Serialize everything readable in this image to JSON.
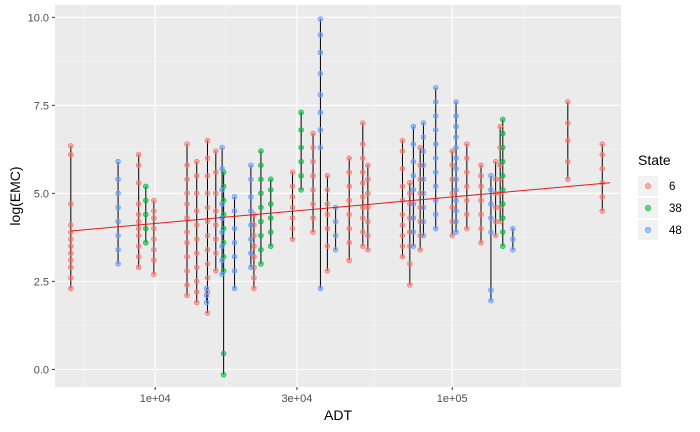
{
  "chart_data": {
    "type": "scatter",
    "xlabel": "ADT",
    "ylabel": "log(EMC)",
    "x_scale": "log10",
    "xlim": [
      4600,
      370000
    ],
    "ylim": [
      -0.5,
      10.35
    ],
    "x_ticks": [
      {
        "value": 10000,
        "label": "1e+04"
      },
      {
        "value": 30000,
        "label": "3e+04"
      },
      {
        "value": 100000,
        "label": "1e+05"
      }
    ],
    "y_ticks": [
      {
        "value": 0,
        "label": "0.0"
      },
      {
        "value": 2.5,
        "label": "2.5"
      },
      {
        "value": 5,
        "label": "5.0"
      },
      {
        "value": 7.5,
        "label": "7.5"
      },
      {
        "value": 10,
        "label": "10.0"
      }
    ],
    "grid": true,
    "legend": {
      "title": "State",
      "position": "right",
      "entries": [
        {
          "label": "6",
          "color": "#F8766D"
        },
        {
          "label": "38",
          "color": "#00BA38"
        },
        {
          "label": "48",
          "color": "#619CFF"
        }
      ]
    },
    "trend_line": {
      "x": [
        5200,
        340000
      ],
      "y": [
        3.93,
        5.3
      ],
      "color": "#E41A1C"
    },
    "series": [
      {
        "name": "6",
        "color": "#F8766D",
        "groups": [
          {
            "x": 5200,
            "y": [
              2.3,
              2.6,
              2.9,
              3.1,
              3.3,
              3.5,
              3.7,
              3.9,
              4.1,
              4.7,
              6.1,
              6.35
            ]
          },
          {
            "x": 8800,
            "y": [
              2.9,
              3.2,
              3.5,
              3.8,
              4.0,
              4.2,
              4.4,
              4.7,
              5.3,
              5.8,
              6.1
            ]
          },
          {
            "x": 9900,
            "y": [
              2.7,
              3.1,
              3.4,
              3.7,
              4.0,
              4.3,
              4.5,
              4.8
            ]
          },
          {
            "x": 12800,
            "y": [
              2.1,
              2.4,
              2.8,
              3.2,
              3.6,
              3.9,
              4.3,
              4.7,
              5.0,
              5.4,
              5.8,
              6.4
            ]
          },
          {
            "x": 13800,
            "y": [
              1.9,
              2.2,
              2.5,
              2.9,
              3.3,
              3.7,
              4.1,
              4.5,
              5.0,
              5.5,
              5.9
            ]
          },
          {
            "x": 15000,
            "y": [
              1.6,
              2.2,
              2.6,
              3.0,
              3.4,
              3.8,
              4.2,
              4.6,
              5.0,
              5.5,
              6.0,
              6.5
            ]
          },
          {
            "x": 16000,
            "y": [
              2.8,
              3.3,
              3.7,
              4.1,
              4.5,
              5.0,
              5.6,
              6.2
            ]
          },
          {
            "x": 21500,
            "y": [
              2.3,
              2.6,
              2.9,
              3.2,
              3.5,
              3.8,
              4.1,
              4.4
            ]
          },
          {
            "x": 29000,
            "y": [
              3.7,
              4.0,
              4.3,
              4.6,
              4.9,
              5.2,
              5.6
            ]
          },
          {
            "x": 34000,
            "y": [
              3.9,
              4.3,
              4.7,
              5.1,
              5.5,
              5.9,
              6.3,
              6.7
            ]
          },
          {
            "x": 38000,
            "y": [
              2.8,
              3.5,
              4.0,
              4.4,
              4.7,
              5.1,
              5.5
            ]
          },
          {
            "x": 45000,
            "y": [
              3.1,
              3.6,
              4.0,
              4.4,
              4.8,
              5.2,
              5.6,
              6.0
            ]
          },
          {
            "x": 50000,
            "y": [
              3.5,
              3.9,
              4.3,
              4.6,
              4.9,
              5.3,
              5.6,
              6.0,
              6.4,
              7.0
            ]
          },
          {
            "x": 52000,
            "y": [
              3.4,
              3.8,
              4.2,
              4.6,
              5.0,
              5.4,
              5.8
            ]
          },
          {
            "x": 68000,
            "y": [
              3.2,
              3.5,
              3.8,
              4.1,
              4.4,
              4.8,
              5.2,
              5.7,
              6.2,
              6.5
            ]
          },
          {
            "x": 72000,
            "y": [
              2.4,
              3.0,
              3.5,
              3.9,
              4.3,
              4.7,
              5.0,
              5.3
            ]
          },
          {
            "x": 78000,
            "y": [
              3.4,
              3.8,
              4.2,
              4.6,
              5.0,
              5.4,
              5.8,
              6.3
            ]
          },
          {
            "x": 100000,
            "y": [
              3.8,
              4.2,
              4.6,
              5.0,
              5.4,
              5.8,
              6.2
            ]
          },
          {
            "x": 112000,
            "y": [
              4.0,
              4.4,
              4.8,
              5.2,
              5.6,
              6.0,
              6.4
            ]
          },
          {
            "x": 125000,
            "y": [
              3.6,
              4.0,
              4.4,
              4.8,
              5.2,
              5.5,
              5.8
            ]
          },
          {
            "x": 140000,
            "y": [
              3.8,
              4.2,
              4.6,
              5.0,
              5.4,
              5.9
            ]
          },
          {
            "x": 145000,
            "y": [
              4.2,
              4.6,
              5.0,
              5.4,
              5.8,
              6.3,
              6.9
            ]
          },
          {
            "x": 245000,
            "y": [
              5.4,
              5.9,
              6.5,
              7.0,
              7.6
            ]
          },
          {
            "x": 320000,
            "y": [
              4.5,
              4.9,
              5.3,
              5.7,
              6.1,
              6.4
            ]
          }
        ]
      },
      {
        "name": "38",
        "color": "#00BA38",
        "groups": [
          {
            "x": 9300,
            "y": [
              3.6,
              4.0,
              4.4,
              4.8,
              5.2
            ]
          },
          {
            "x": 17000,
            "y": [
              -0.15,
              0.45,
              2.8,
              3.2,
              3.6,
              4.0,
              4.4,
              4.8,
              5.2,
              5.6
            ]
          },
          {
            "x": 22700,
            "y": [
              3.0,
              3.4,
              3.8,
              4.2,
              4.6,
              5.0,
              5.4,
              5.8,
              6.2
            ]
          },
          {
            "x": 24500,
            "y": [
              3.5,
              3.9,
              4.3,
              4.7,
              5.1,
              5.4
            ]
          },
          {
            "x": 31000,
            "y": [
              5.1,
              5.5,
              5.9,
              6.3,
              6.8,
              7.3
            ]
          },
          {
            "x": 148000,
            "y": [
              3.5,
              3.9,
              4.3,
              4.7,
              5.1,
              5.5,
              5.9,
              6.3,
              6.7,
              7.1
            ]
          }
        ]
      },
      {
        "name": "48",
        "color": "#619CFF",
        "groups": [
          {
            "x": 7500,
            "y": [
              3.0,
              3.4,
              3.8,
              4.2,
              4.6,
              5.0,
              5.4,
              5.9
            ]
          },
          {
            "x": 14900,
            "y": [
              1.9,
              2.1,
              2.3
            ]
          },
          {
            "x": 16800,
            "y": [
              2.7,
              3.1,
              3.5,
              3.9,
              4.3,
              4.7,
              5.1,
              5.7,
              6.3
            ]
          },
          {
            "x": 18500,
            "y": [
              2.3,
              2.8,
              3.2,
              3.6,
              4.0,
              4.5,
              4.9
            ]
          },
          {
            "x": 21000,
            "y": [
              2.9,
              3.3,
              3.7,
              4.1,
              4.5,
              4.9,
              5.4,
              5.8
            ]
          },
          {
            "x": 36000,
            "y": [
              2.3,
              6.3,
              6.8,
              7.3,
              7.8,
              8.4,
              9.0,
              9.5,
              9.95
            ]
          },
          {
            "x": 40500,
            "y": [
              3.4,
              3.8,
              4.2,
              4.6
            ]
          },
          {
            "x": 74000,
            "y": [
              3.5,
              3.9,
              4.3,
              4.7,
              5.1,
              5.5,
              5.9,
              6.4,
              6.9
            ]
          },
          {
            "x": 80000,
            "y": [
              3.8,
              4.2,
              4.6,
              5.0,
              5.4,
              5.8,
              6.2,
              6.6,
              7.0
            ]
          },
          {
            "x": 88000,
            "y": [
              4.0,
              4.4,
              4.8,
              5.2,
              5.6,
              6.0,
              6.4,
              6.8,
              7.2,
              7.6,
              8.0
            ]
          },
          {
            "x": 103000,
            "y": [
              3.9,
              4.2,
              4.5,
              4.8,
              5.1,
              5.4,
              5.7,
              6.0,
              6.3,
              6.6,
              6.9,
              7.2,
              7.6
            ]
          },
          {
            "x": 135000,
            "y": [
              1.95,
              2.25,
              3.9,
              4.3,
              4.7,
              5.1,
              5.5
            ]
          },
          {
            "x": 160000,
            "y": [
              3.4,
              3.7,
              4.0
            ]
          }
        ]
      }
    ]
  }
}
